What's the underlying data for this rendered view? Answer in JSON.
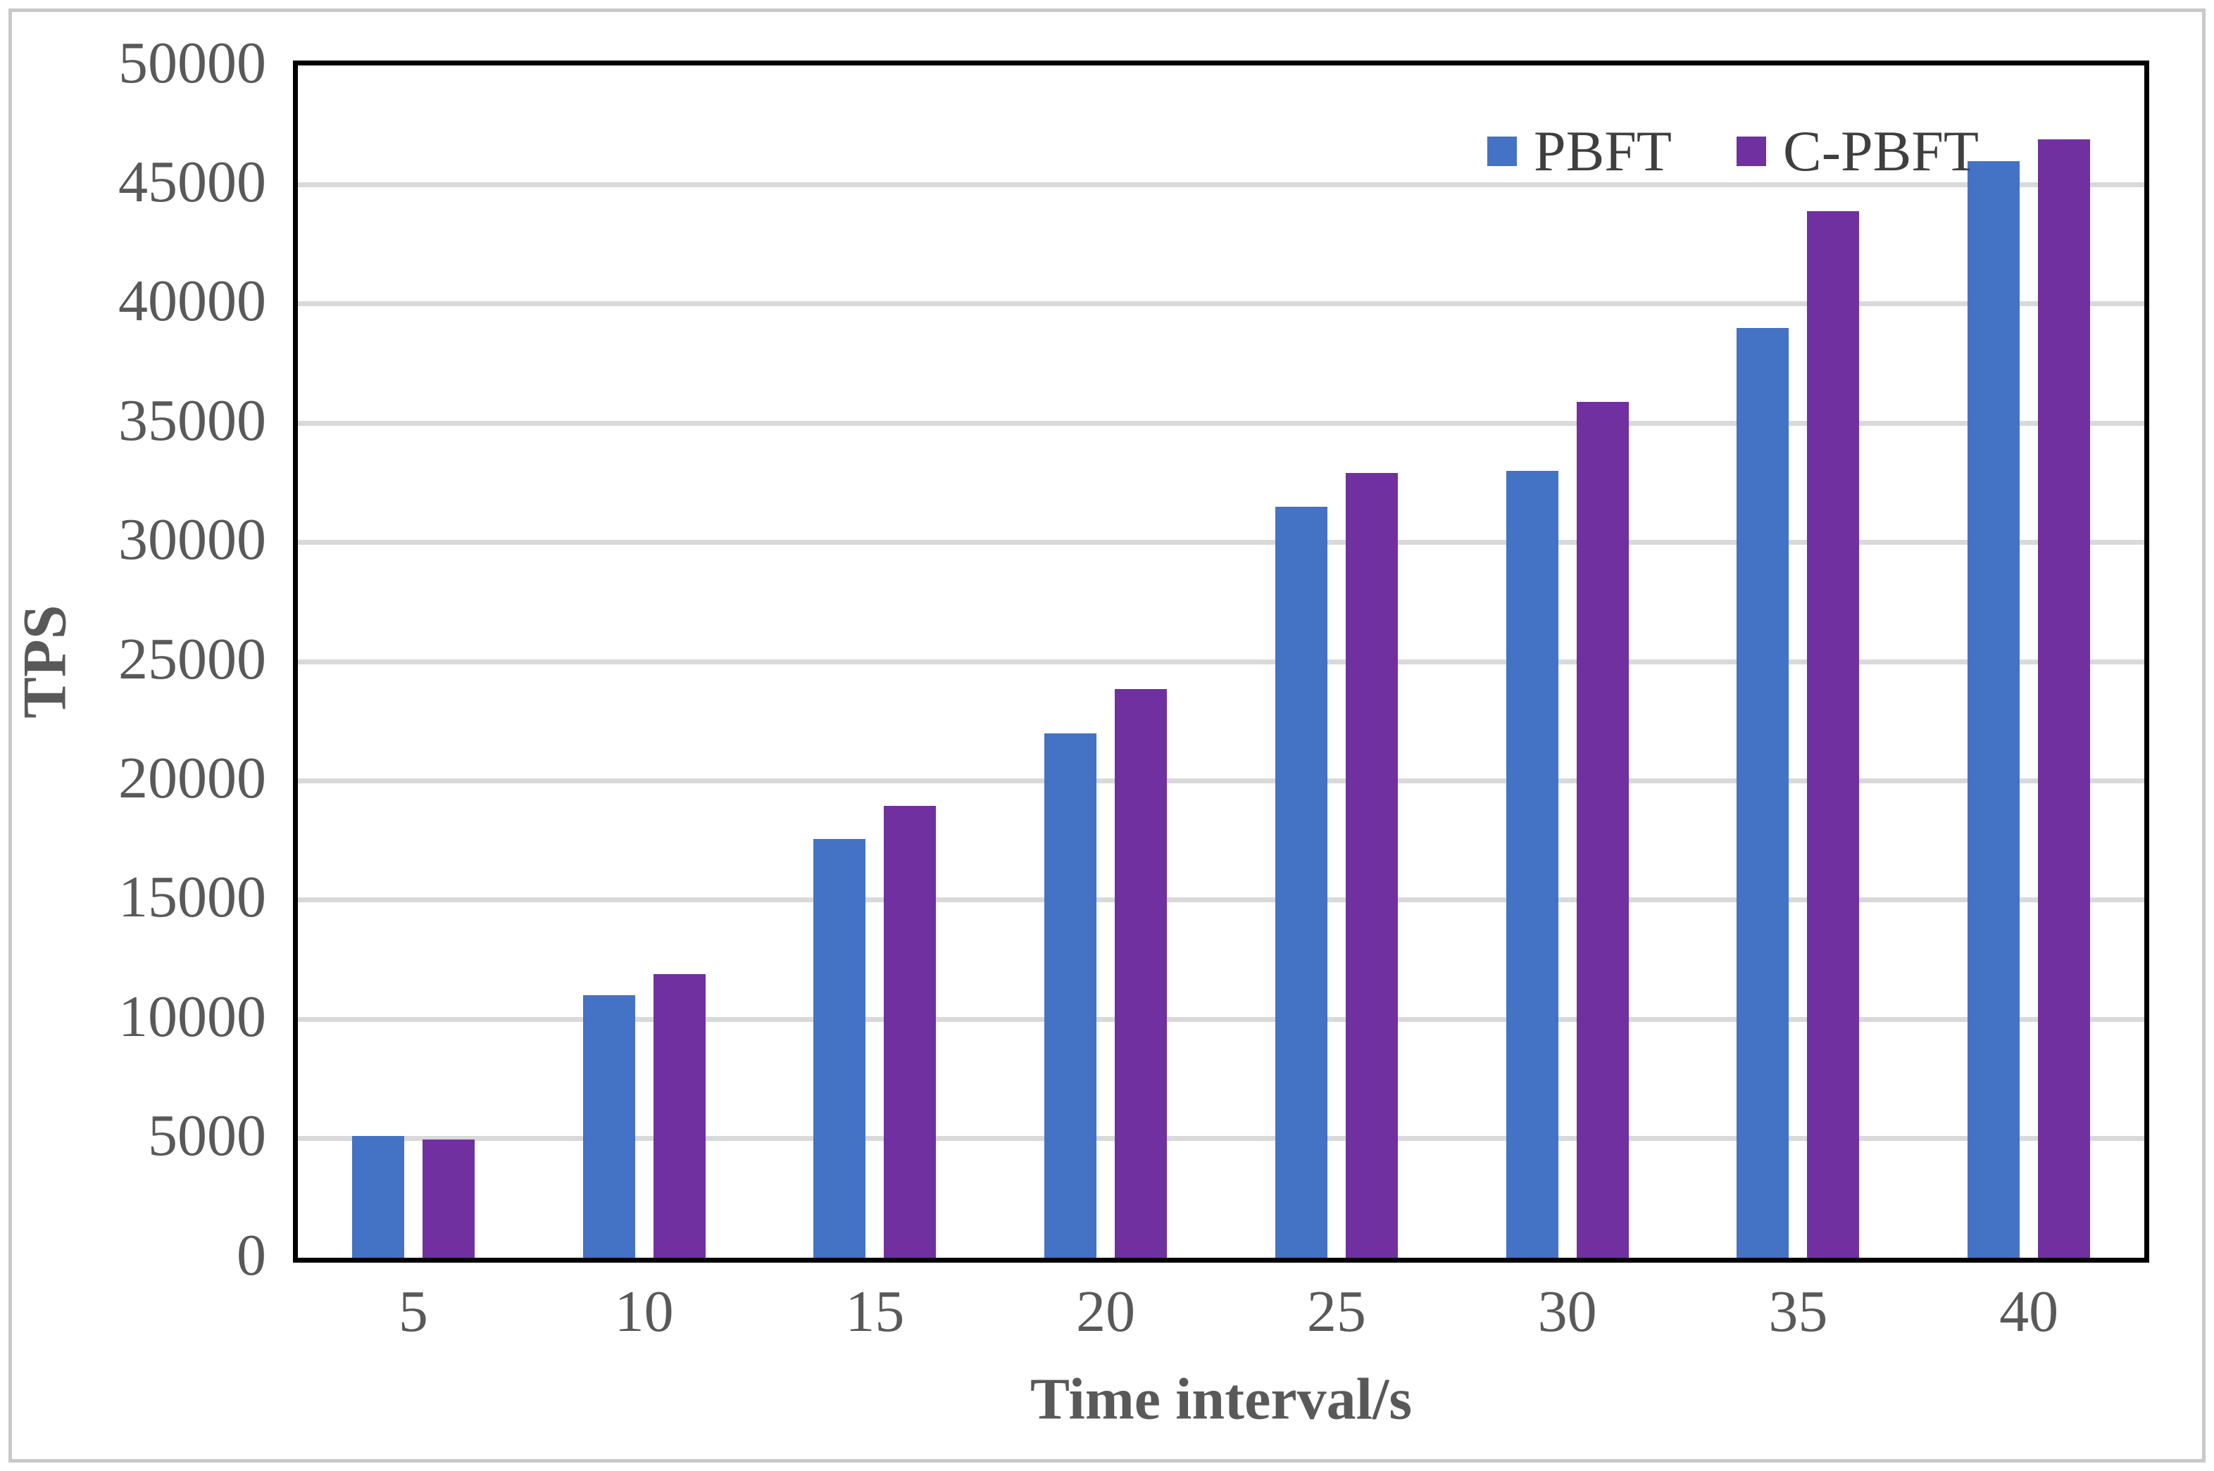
{
  "axis": {
    "y_title": "TPS",
    "x_title": "Time interval/s"
  },
  "colors": {
    "pbft_blue": "#4472C4",
    "cpbft_purple": "#7030A0",
    "gridline": "#D9D9D9",
    "axis_frame": "#000000",
    "tick_text": "#595959",
    "legend_text": "#3F3F3F",
    "outer_border": "#C9C9C9"
  },
  "legend": {
    "position": "top-right",
    "items": [
      {
        "label": "PBFT",
        "color": "#4472C4"
      },
      {
        "label": "C-PBFT",
        "color": "#7030A0"
      }
    ]
  },
  "chart_data": {
    "type": "bar",
    "title": "",
    "xlabel": "Time interval/s",
    "ylabel": "TPS",
    "categories": [
      "5",
      "10",
      "15",
      "20",
      "25",
      "30",
      "35",
      "40"
    ],
    "series": [
      {
        "name": "PBFT",
        "color": "#4472C4",
        "values": [
          5100,
          11000,
          17550,
          22000,
          31500,
          33000,
          39000,
          46000
        ]
      },
      {
        "name": "C-PBFT",
        "color": "#7030A0",
        "values": [
          4950,
          11900,
          18950,
          23850,
          32900,
          35900,
          43900,
          46900
        ]
      }
    ],
    "ylim": [
      0,
      50000
    ],
    "ytick_step": 5000,
    "ytick_labels": [
      "0",
      "5000",
      "10000",
      "15000",
      "20000",
      "25000",
      "30000",
      "35000",
      "40000",
      "45000",
      "50000"
    ],
    "grid": true,
    "legend_position": "top-right"
  }
}
